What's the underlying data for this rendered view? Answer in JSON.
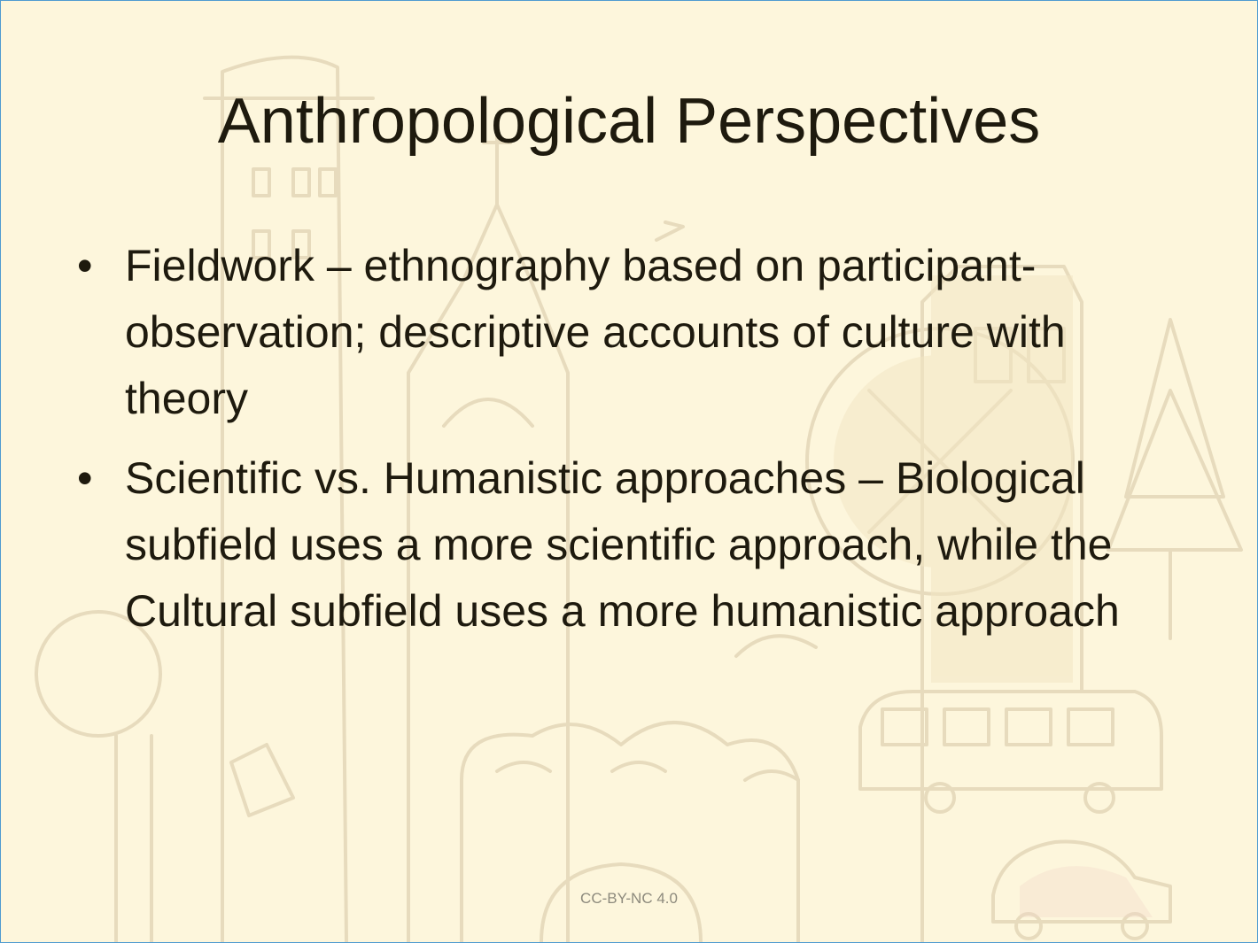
{
  "slide": {
    "title": "Anthropological Perspectives",
    "bullets": [
      {
        "marker": "•",
        "text": "Fieldwork – ethnography based on participant-observation; descriptive accounts of culture with theory"
      },
      {
        "marker": "•",
        "text": "Scientific vs. Humanistic approaches – Biological subfield uses a more scientific approach, while the Cultural subfield uses a more humanistic approach"
      }
    ],
    "footer": "CC-BY-NC 4.0"
  },
  "colors": {
    "background": "#fdf6dc",
    "border": "#4f9bd0",
    "text": "#1e1a0e",
    "footer_text": "#8d8a7d",
    "sketch": "#e8dcc0"
  }
}
